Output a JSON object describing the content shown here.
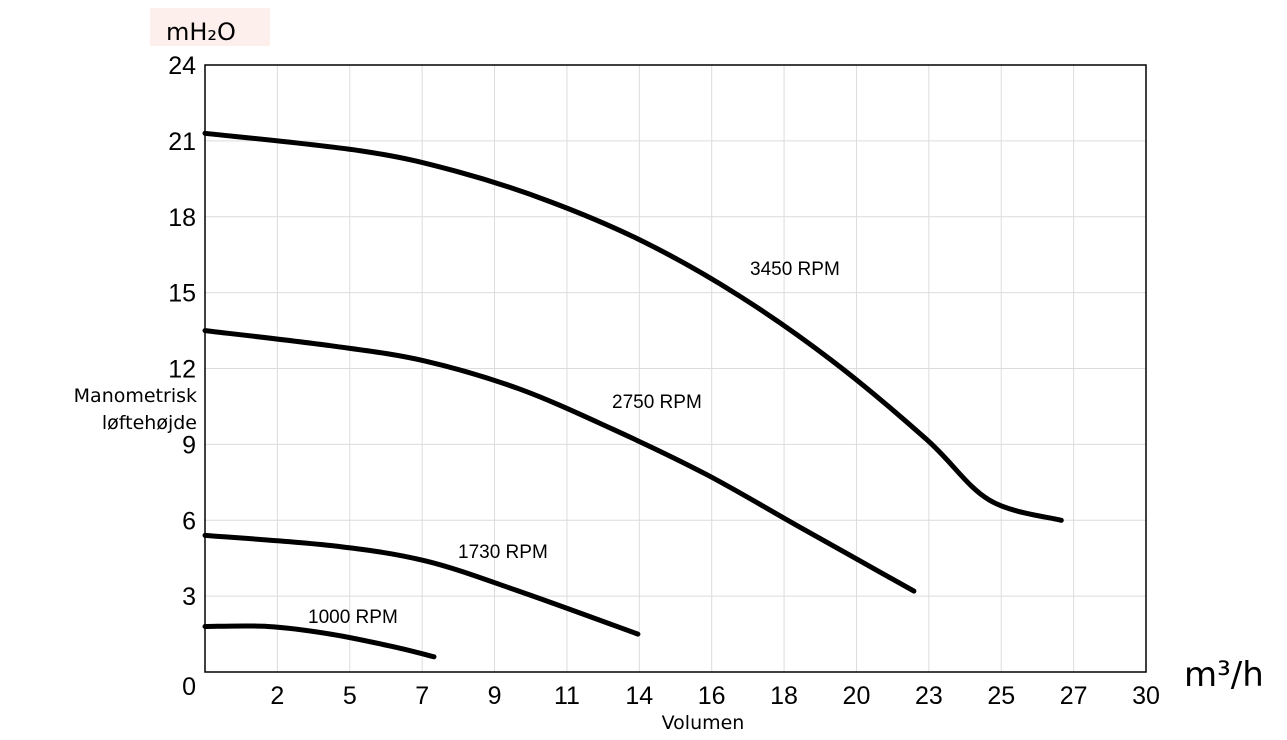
{
  "chart_data": {
    "type": "line",
    "y_unit": "mH₂O",
    "x_unit": "m³/h",
    "ylabel_lines": [
      "Manometrisk",
      "løftehøjde"
    ],
    "xlabel": "Volumen",
    "x_tick_labels": [
      "0",
      "2",
      "5",
      "7",
      "9",
      "11",
      "14",
      "16",
      "18",
      "20",
      "23",
      "25",
      "27",
      "30"
    ],
    "y_tick_labels": [
      "3",
      "6",
      "9",
      "12",
      "15",
      "18",
      "21",
      "24"
    ],
    "xlim": [
      0,
      30
    ],
    "ylim": [
      0,
      24
    ],
    "grid": true,
    "series": [
      {
        "name": "3450 RPM",
        "x": [
          0,
          5,
          8,
          11,
          14,
          17,
          20,
          23,
          25,
          27.3
        ],
        "y": [
          21.3,
          20.6,
          19.8,
          18.6,
          17.0,
          14.9,
          12.3,
          9.2,
          6.8,
          6.0
        ]
      },
      {
        "name": "2750 RPM",
        "x": [
          0,
          4,
          7,
          10,
          13,
          16,
          19,
          22.6
        ],
        "y": [
          13.5,
          12.9,
          12.3,
          11.2,
          9.6,
          7.8,
          5.7,
          3.2
        ]
      },
      {
        "name": "1730 RPM",
        "x": [
          0,
          4,
          7,
          10,
          13.8
        ],
        "y": [
          5.4,
          5.0,
          4.4,
          3.2,
          1.5
        ]
      },
      {
        "name": "1000 RPM",
        "x": [
          0,
          2,
          4,
          6,
          7.3
        ],
        "y": [
          1.8,
          1.8,
          1.5,
          1.0,
          0.6
        ]
      }
    ]
  }
}
